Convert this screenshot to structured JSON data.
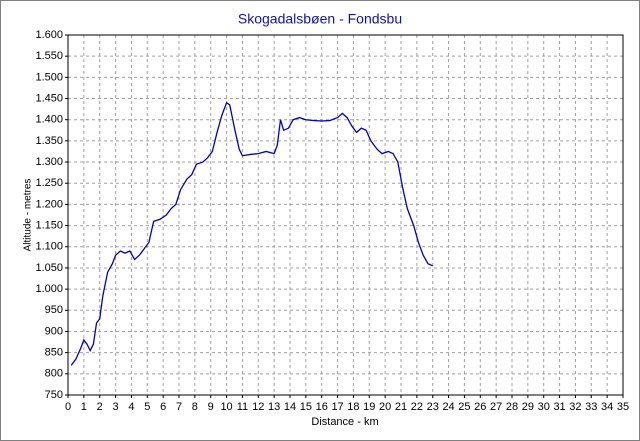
{
  "chart_data": {
    "type": "line",
    "title": "Skogadalsbøen - Fondsbu",
    "xlabel": "Distance - km",
    "ylabel": "Altitude - metres",
    "color": "#0000c8",
    "grid": true,
    "x": [
      0.2,
      0.5,
      0.8,
      1.0,
      1.2,
      1.4,
      1.6,
      1.8,
      2.0,
      2.2,
      2.5,
      2.8,
      3.0,
      3.3,
      3.6,
      3.9,
      4.2,
      4.5,
      4.8,
      5.1,
      5.4,
      5.8,
      6.2,
      6.5,
      6.8,
      7.1,
      7.5,
      7.8,
      8.1,
      8.5,
      8.8,
      9.1,
      9.4,
      9.7,
      10.0,
      10.2,
      10.5,
      10.8,
      11.0,
      11.5,
      12.0,
      12.5,
      13.0,
      13.2,
      13.4,
      13.6,
      13.9,
      14.2,
      14.6,
      15.0,
      15.5,
      16.0,
      16.5,
      17.0,
      17.3,
      17.6,
      17.9,
      18.2,
      18.5,
      18.8,
      19.1,
      19.5,
      19.8,
      20.2,
      20.5,
      20.8,
      21.1,
      21.4,
      21.8,
      22.1,
      22.4,
      22.7,
      23.0
    ],
    "values": [
      820,
      835,
      860,
      880,
      870,
      855,
      870,
      920,
      930,
      985,
      1040,
      1060,
      1080,
      1090,
      1085,
      1090,
      1070,
      1080,
      1095,
      1110,
      1160,
      1165,
      1175,
      1190,
      1200,
      1235,
      1260,
      1270,
      1295,
      1300,
      1310,
      1325,
      1370,
      1410,
      1440,
      1435,
      1380,
      1330,
      1315,
      1318,
      1320,
      1325,
      1320,
      1340,
      1400,
      1375,
      1380,
      1400,
      1405,
      1400,
      1398,
      1397,
      1398,
      1405,
      1415,
      1405,
      1385,
      1370,
      1380,
      1375,
      1350,
      1330,
      1320,
      1325,
      1320,
      1300,
      1240,
      1190,
      1150,
      1110,
      1080,
      1060,
      1055
    ],
    "xlim": [
      0,
      35
    ],
    "xticks": [
      0,
      1,
      2,
      3,
      4,
      5,
      6,
      7,
      8,
      9,
      10,
      11,
      12,
      13,
      14,
      15,
      16,
      17,
      18,
      19,
      20,
      21,
      22,
      23,
      24,
      25,
      26,
      27,
      28,
      29,
      30,
      31,
      32,
      33,
      34,
      35
    ],
    "ylim": [
      750,
      1600
    ],
    "yticks": [
      750,
      800,
      850,
      900,
      950,
      {
        "value": 1000,
        "label": "1.000"
      },
      {
        "value": 1050,
        "label": "1.050"
      },
      {
        "value": 1100,
        "label": "1.100"
      },
      {
        "value": 1150,
        "label": "1.150"
      },
      {
        "value": 1200,
        "label": "1.200"
      },
      {
        "value": 1250,
        "label": "1.250"
      },
      {
        "value": 1300,
        "label": "1.300"
      },
      {
        "value": 1350,
        "label": "1.350"
      },
      {
        "value": 1400,
        "label": "1.400"
      },
      {
        "value": 1450,
        "label": "1.450"
      },
      {
        "value": 1500,
        "label": "1.500"
      },
      {
        "value": 1550,
        "label": "1.550"
      },
      {
        "value": 1600,
        "label": "1.600"
      }
    ]
  }
}
